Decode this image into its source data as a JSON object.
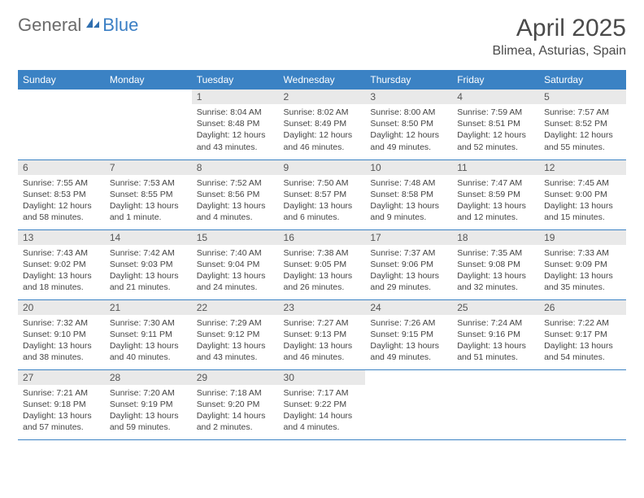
{
  "brand": {
    "general": "General",
    "blue": "Blue"
  },
  "title": "April 2025",
  "location": "Blimea, Asturias, Spain",
  "colors": {
    "header_bg": "#3b82c4",
    "header_text": "#ffffff",
    "daynum_bg": "#e9e9e9",
    "row_border": "#3b82c4",
    "logo_gray": "#6b6b6b",
    "logo_blue": "#3b7fc4"
  },
  "dayHeaders": [
    "Sunday",
    "Monday",
    "Tuesday",
    "Wednesday",
    "Thursday",
    "Friday",
    "Saturday"
  ],
  "weeks": [
    [
      null,
      null,
      {
        "num": "1",
        "sunrise": "Sunrise: 8:04 AM",
        "sunset": "Sunset: 8:48 PM",
        "daylight": "Daylight: 12 hours and 43 minutes."
      },
      {
        "num": "2",
        "sunrise": "Sunrise: 8:02 AM",
        "sunset": "Sunset: 8:49 PM",
        "daylight": "Daylight: 12 hours and 46 minutes."
      },
      {
        "num": "3",
        "sunrise": "Sunrise: 8:00 AM",
        "sunset": "Sunset: 8:50 PM",
        "daylight": "Daylight: 12 hours and 49 minutes."
      },
      {
        "num": "4",
        "sunrise": "Sunrise: 7:59 AM",
        "sunset": "Sunset: 8:51 PM",
        "daylight": "Daylight: 12 hours and 52 minutes."
      },
      {
        "num": "5",
        "sunrise": "Sunrise: 7:57 AM",
        "sunset": "Sunset: 8:52 PM",
        "daylight": "Daylight: 12 hours and 55 minutes."
      }
    ],
    [
      {
        "num": "6",
        "sunrise": "Sunrise: 7:55 AM",
        "sunset": "Sunset: 8:53 PM",
        "daylight": "Daylight: 12 hours and 58 minutes."
      },
      {
        "num": "7",
        "sunrise": "Sunrise: 7:53 AM",
        "sunset": "Sunset: 8:55 PM",
        "daylight": "Daylight: 13 hours and 1 minute."
      },
      {
        "num": "8",
        "sunrise": "Sunrise: 7:52 AM",
        "sunset": "Sunset: 8:56 PM",
        "daylight": "Daylight: 13 hours and 4 minutes."
      },
      {
        "num": "9",
        "sunrise": "Sunrise: 7:50 AM",
        "sunset": "Sunset: 8:57 PM",
        "daylight": "Daylight: 13 hours and 6 minutes."
      },
      {
        "num": "10",
        "sunrise": "Sunrise: 7:48 AM",
        "sunset": "Sunset: 8:58 PM",
        "daylight": "Daylight: 13 hours and 9 minutes."
      },
      {
        "num": "11",
        "sunrise": "Sunrise: 7:47 AM",
        "sunset": "Sunset: 8:59 PM",
        "daylight": "Daylight: 13 hours and 12 minutes."
      },
      {
        "num": "12",
        "sunrise": "Sunrise: 7:45 AM",
        "sunset": "Sunset: 9:00 PM",
        "daylight": "Daylight: 13 hours and 15 minutes."
      }
    ],
    [
      {
        "num": "13",
        "sunrise": "Sunrise: 7:43 AM",
        "sunset": "Sunset: 9:02 PM",
        "daylight": "Daylight: 13 hours and 18 minutes."
      },
      {
        "num": "14",
        "sunrise": "Sunrise: 7:42 AM",
        "sunset": "Sunset: 9:03 PM",
        "daylight": "Daylight: 13 hours and 21 minutes."
      },
      {
        "num": "15",
        "sunrise": "Sunrise: 7:40 AM",
        "sunset": "Sunset: 9:04 PM",
        "daylight": "Daylight: 13 hours and 24 minutes."
      },
      {
        "num": "16",
        "sunrise": "Sunrise: 7:38 AM",
        "sunset": "Sunset: 9:05 PM",
        "daylight": "Daylight: 13 hours and 26 minutes."
      },
      {
        "num": "17",
        "sunrise": "Sunrise: 7:37 AM",
        "sunset": "Sunset: 9:06 PM",
        "daylight": "Daylight: 13 hours and 29 minutes."
      },
      {
        "num": "18",
        "sunrise": "Sunrise: 7:35 AM",
        "sunset": "Sunset: 9:08 PM",
        "daylight": "Daylight: 13 hours and 32 minutes."
      },
      {
        "num": "19",
        "sunrise": "Sunrise: 7:33 AM",
        "sunset": "Sunset: 9:09 PM",
        "daylight": "Daylight: 13 hours and 35 minutes."
      }
    ],
    [
      {
        "num": "20",
        "sunrise": "Sunrise: 7:32 AM",
        "sunset": "Sunset: 9:10 PM",
        "daylight": "Daylight: 13 hours and 38 minutes."
      },
      {
        "num": "21",
        "sunrise": "Sunrise: 7:30 AM",
        "sunset": "Sunset: 9:11 PM",
        "daylight": "Daylight: 13 hours and 40 minutes."
      },
      {
        "num": "22",
        "sunrise": "Sunrise: 7:29 AM",
        "sunset": "Sunset: 9:12 PM",
        "daylight": "Daylight: 13 hours and 43 minutes."
      },
      {
        "num": "23",
        "sunrise": "Sunrise: 7:27 AM",
        "sunset": "Sunset: 9:13 PM",
        "daylight": "Daylight: 13 hours and 46 minutes."
      },
      {
        "num": "24",
        "sunrise": "Sunrise: 7:26 AM",
        "sunset": "Sunset: 9:15 PM",
        "daylight": "Daylight: 13 hours and 49 minutes."
      },
      {
        "num": "25",
        "sunrise": "Sunrise: 7:24 AM",
        "sunset": "Sunset: 9:16 PM",
        "daylight": "Daylight: 13 hours and 51 minutes."
      },
      {
        "num": "26",
        "sunrise": "Sunrise: 7:22 AM",
        "sunset": "Sunset: 9:17 PM",
        "daylight": "Daylight: 13 hours and 54 minutes."
      }
    ],
    [
      {
        "num": "27",
        "sunrise": "Sunrise: 7:21 AM",
        "sunset": "Sunset: 9:18 PM",
        "daylight": "Daylight: 13 hours and 57 minutes."
      },
      {
        "num": "28",
        "sunrise": "Sunrise: 7:20 AM",
        "sunset": "Sunset: 9:19 PM",
        "daylight": "Daylight: 13 hours and 59 minutes."
      },
      {
        "num": "29",
        "sunrise": "Sunrise: 7:18 AM",
        "sunset": "Sunset: 9:20 PM",
        "daylight": "Daylight: 14 hours and 2 minutes."
      },
      {
        "num": "30",
        "sunrise": "Sunrise: 7:17 AM",
        "sunset": "Sunset: 9:22 PM",
        "daylight": "Daylight: 14 hours and 4 minutes."
      },
      null,
      null,
      null
    ]
  ]
}
